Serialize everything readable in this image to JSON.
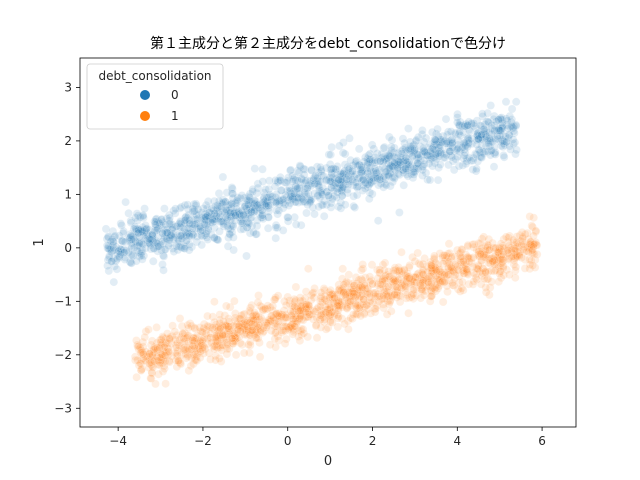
{
  "chart_data": {
    "type": "scatter",
    "title": "第１主成分と第２主成分をdebt_consolidationで色分け",
    "xlabel": "0",
    "ylabel": "1",
    "xlim": [
      -4.9,
      6.8
    ],
    "ylim": [
      -3.35,
      3.55
    ],
    "x_ticks": [
      -4,
      -2,
      0,
      2,
      4,
      6
    ],
    "y_ticks": [
      -3,
      -2,
      -1,
      0,
      1,
      2,
      3
    ],
    "x_tick_labels": [
      "−4",
      "−2",
      "0",
      "2",
      "4",
      "6"
    ],
    "y_tick_labels": [
      "−3",
      "−2",
      "−1",
      "0",
      "1",
      "2",
      "3"
    ],
    "grid": false,
    "legend": {
      "title": "debt_consolidation",
      "placement": "top-left"
    },
    "series": [
      {
        "name": "0",
        "color": "#1f77b4",
        "band": {
          "x_start": -4.3,
          "x_end": 5.4,
          "center_start": -0.05,
          "center_end": 2.25,
          "half_width": 0.42
        }
      },
      {
        "name": "1",
        "color": "#ff7f0e",
        "band": {
          "x_start": -3.6,
          "x_end": 5.9,
          "center_start": -2.1,
          "center_end": 0.05,
          "half_width": 0.38
        }
      }
    ]
  }
}
